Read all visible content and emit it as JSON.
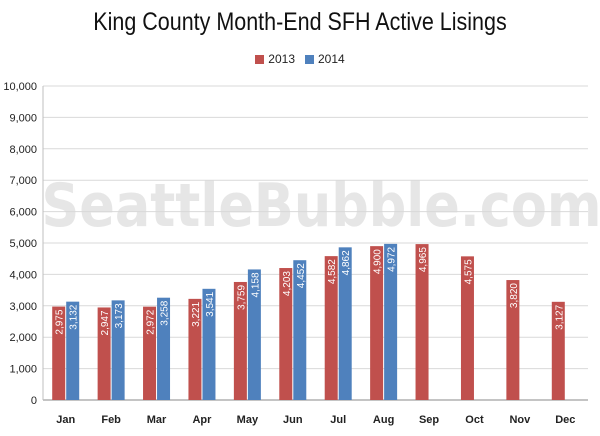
{
  "chart_data": {
    "type": "bar",
    "title": "King County Month-End SFH Active Lisings",
    "watermark": "SeattleBubble.com",
    "categories": [
      "Jan",
      "Feb",
      "Mar",
      "Apr",
      "May",
      "Jun",
      "Jul",
      "Aug",
      "Sep",
      "Oct",
      "Nov",
      "Dec"
    ],
    "series": [
      {
        "name": "2013",
        "color": "#c0504d",
        "values": [
          2975,
          2947,
          2972,
          3221,
          3759,
          4203,
          4582,
          4900,
          4965,
          4575,
          3820,
          3127
        ],
        "labels": [
          "2,975",
          "2,947",
          "2,972",
          "3,221",
          "3,759",
          "4,203",
          "4,582",
          "4,900",
          "4,965",
          "4,575",
          "3,820",
          "3,127"
        ]
      },
      {
        "name": "2014",
        "color": "#4f81bd",
        "values": [
          3132,
          3173,
          3258,
          3541,
          4158,
          4452,
          4862,
          4972,
          null,
          null,
          null,
          null
        ],
        "labels": [
          "3,132",
          "3,173",
          "3,258",
          "3,541",
          "4,158",
          "4,452",
          "4,862",
          "4,972",
          null,
          null,
          null,
          null
        ]
      }
    ],
    "yticks": [
      0,
      1000,
      2000,
      3000,
      4000,
      5000,
      6000,
      7000,
      8000,
      9000,
      10000
    ],
    "ytick_labels": [
      "0",
      "1,000",
      "2,000",
      "3,000",
      "4,000",
      "5,000",
      "6,000",
      "7,000",
      "8,000",
      "9,000",
      "10,000"
    ],
    "ylim": [
      0,
      10000
    ],
    "grid": true,
    "legend": "top-center"
  }
}
